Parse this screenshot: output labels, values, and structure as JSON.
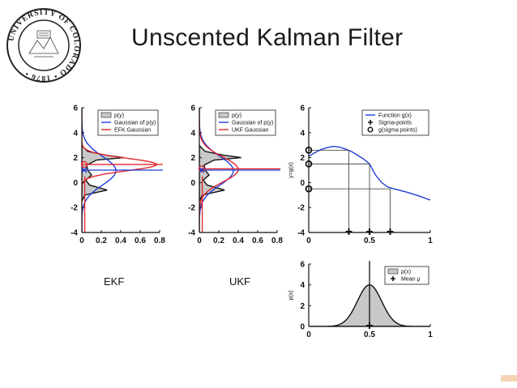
{
  "title": "Unscented Kalman Filter",
  "captions": {
    "ekf": "EKF",
    "ukf": "UKF"
  },
  "seal": {
    "text": "UNIVERSITY OF COLORADO • 1876 •"
  },
  "colors": {
    "blue": "#1f3cd6",
    "red": "#e0262b",
    "gray": "#c8c8c8",
    "black": "#111111"
  },
  "chart_data": [
    {
      "id": "ekf",
      "type": "line",
      "xlim": [
        0,
        0.8
      ],
      "ylim": [
        -4,
        6
      ],
      "xticks": [
        0,
        0.2,
        0.4,
        0.6,
        0.8
      ],
      "xtick_labels": [
        "0",
        "0.2",
        "0.4",
        "0.6",
        "0.8"
      ],
      "yticks": [
        -4,
        -2,
        0,
        2,
        4,
        6
      ],
      "ytick_labels": [
        "-4",
        "-2",
        "0",
        "2",
        "4",
        "6"
      ],
      "legend": [
        "p(y)",
        "Gaussian of p(y)",
        "EFK Gaussian"
      ],
      "legend_position": "top-right",
      "markers": {
        "circle_y": 1.45,
        "x_y": 1.0
      },
      "series": [
        {
          "name": "p(y)",
          "kind": "area",
          "y": [
            -1.5,
            -1.0,
            -0.6,
            -0.2,
            0.2,
            0.6,
            1.0,
            1.4,
            1.8,
            2.0,
            2.2,
            2.5,
            2.8,
            3.0
          ],
          "x": [
            0.0,
            0.03,
            0.26,
            0.08,
            0.04,
            0.1,
            0.06,
            0.05,
            0.15,
            0.43,
            0.25,
            0.06,
            0.02,
            0.0
          ]
        },
        {
          "name": "Gaussian of p(y)",
          "kind": "gauss",
          "mean": 0.95,
          "sd": 1.15,
          "peak": 0.35
        },
        {
          "name": "EFK Gaussian",
          "kind": "gauss",
          "mean": 1.45,
          "sd": 0.5,
          "peak": 0.77
        }
      ]
    },
    {
      "id": "ukf",
      "type": "line",
      "xlim": [
        0,
        0.8
      ],
      "ylim": [
        -4,
        6
      ],
      "xticks": [
        0,
        0.2,
        0.4,
        0.6,
        0.8
      ],
      "xtick_labels": [
        "0",
        "0.2",
        "0.4",
        "0.6",
        "0.8"
      ],
      "yticks": [
        -4,
        -2,
        0,
        2,
        4,
        6
      ],
      "ytick_labels": [
        "-4",
        "-2",
        "0",
        "2",
        "4",
        "6"
      ],
      "legend": [
        "p(y)",
        "Gaussian of p(y)",
        "UKF Gaussian"
      ],
      "legend_position": "top-right",
      "markers": {
        "circle_y": 1.1,
        "x_y": 1.0
      },
      "series": [
        {
          "name": "p(y)",
          "kind": "area",
          "y": [
            -1.5,
            -1.0,
            -0.6,
            -0.2,
            0.2,
            0.6,
            1.0,
            1.4,
            1.8,
            2.0,
            2.2,
            2.5,
            2.8,
            3.0
          ],
          "x": [
            0.0,
            0.03,
            0.26,
            0.08,
            0.04,
            0.1,
            0.06,
            0.05,
            0.15,
            0.43,
            0.25,
            0.06,
            0.02,
            0.0
          ]
        },
        {
          "name": "Gaussian of p(y)",
          "kind": "gauss",
          "mean": 0.95,
          "sd": 1.15,
          "peak": 0.35
        },
        {
          "name": "UKF Gaussian",
          "kind": "gauss",
          "mean": 1.05,
          "sd": 1.0,
          "peak": 0.4
        }
      ]
    },
    {
      "id": "gfunc",
      "type": "line",
      "xlim": [
        0,
        1
      ],
      "ylim": [
        -4,
        6
      ],
      "xticks": [
        0,
        0.5,
        1
      ],
      "xtick_labels": [
        "0",
        "0.5",
        "1"
      ],
      "yticks": [
        -4,
        -2,
        0,
        2,
        4,
        6
      ],
      "ytick_labels": [
        "-4",
        "-2",
        "0",
        "2",
        "4",
        "6"
      ],
      "ylabel": "y=g(x)",
      "legend": [
        "Function g(x)",
        "Sigma-points",
        "g(sigma points)"
      ],
      "legend_position": "top-right",
      "series": [
        {
          "name": "Function g(x)",
          "x": [
            0,
            0.05,
            0.1,
            0.15,
            0.2,
            0.25,
            0.3,
            0.35,
            0.4,
            0.45,
            0.5,
            0.55,
            0.6,
            0.65,
            0.7,
            0.8,
            0.9,
            1.0
          ],
          "y": [
            2.1,
            2.4,
            2.65,
            2.8,
            2.9,
            2.85,
            2.7,
            2.5,
            2.2,
            1.9,
            1.5,
            0.6,
            0.0,
            -0.35,
            -0.5,
            -0.75,
            -1.05,
            -1.4
          ]
        },
        {
          "name": "Sigma-points",
          "x": [
            0.33,
            0.5,
            0.67
          ],
          "y": [
            -4,
            -4,
            -4
          ]
        },
        {
          "name": "g(sigma points)",
          "x": [
            0,
            0,
            0
          ],
          "y": [
            2.6,
            1.5,
            -0.5
          ]
        }
      ],
      "projections": [
        {
          "x": 0.33,
          "y": 2.6
        },
        {
          "x": 0.5,
          "y": 1.5
        },
        {
          "x": 0.67,
          "y": -0.5
        }
      ]
    },
    {
      "id": "px",
      "type": "area",
      "xlim": [
        0,
        1
      ],
      "ylim": [
        0,
        6
      ],
      "xticks": [
        0,
        0.5,
        1
      ],
      "xtick_labels": [
        "0",
        "0.5",
        "1"
      ],
      "yticks": [
        0,
        2,
        4,
        6
      ],
      "ytick_labels": [
        "0",
        "2",
        "4",
        "6"
      ],
      "ylabel": "p(x)",
      "legend": [
        "p(x)",
        "Mean μ"
      ],
      "legend_position": "top-right",
      "series": [
        {
          "name": "p(x)",
          "kind": "gauss",
          "mean": 0.5,
          "sd": 0.1,
          "peak": 4.0
        },
        {
          "name": "Mean μ",
          "x": [
            0.5
          ],
          "y": [
            0
          ]
        }
      ]
    }
  ]
}
